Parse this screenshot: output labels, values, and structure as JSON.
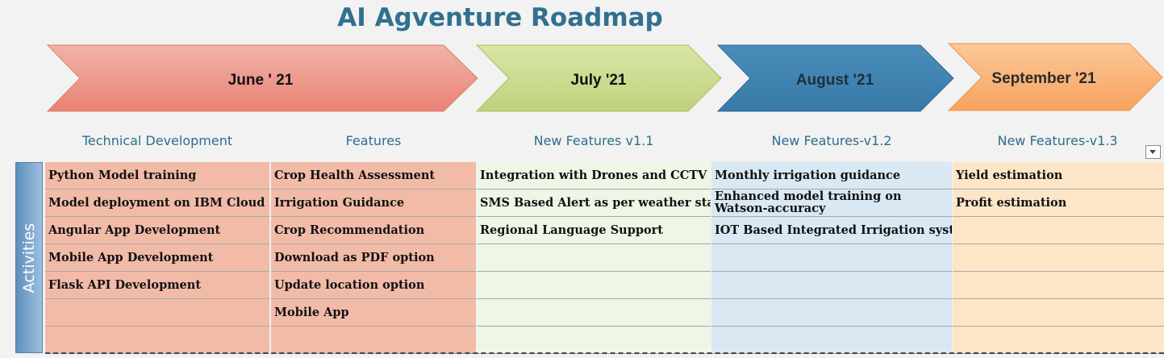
{
  "title": "AI Agventure Roadmap",
  "milestones": [
    "June ' 21",
    "July '21",
    "August '21",
    "September '21"
  ],
  "side_label": "Activities",
  "colors": {
    "june": "#ef8d80",
    "july": "#c7d88a",
    "august": "#3f82b0",
    "september": "#f9b172",
    "header_text": "#2e6d8e"
  },
  "columns": [
    {
      "header": "Technical Development",
      "items": [
        "Python Model training",
        "Model deployment on IBM Cloud",
        "Angular App Development",
        "Mobile App Development",
        "Flask API Development",
        "",
        ""
      ]
    },
    {
      "header": "Features",
      "items": [
        "Crop Health Assessment",
        "Irrigation Guidance",
        "Crop Recommendation",
        "Download as PDF option",
        "Update location option",
        "Mobile App",
        ""
      ]
    },
    {
      "header": "New Features v1.1",
      "items": [
        "Integration with Drones and CCTV",
        "SMS Based Alert as per weather status",
        "Regional Language Support",
        "",
        "",
        "",
        ""
      ]
    },
    {
      "header": "New Features-v1.2",
      "items": [
        "Monthly irrigation guidance",
        "Enhanced model training on Watson-accuracy",
        "IOT Based Integrated Irrigation system",
        "",
        "",
        "",
        ""
      ]
    },
    {
      "header": "New Features-v1.3",
      "items": [
        "Yield estimation",
        "Profit estimation",
        "",
        "",
        "",
        "",
        ""
      ]
    }
  ]
}
